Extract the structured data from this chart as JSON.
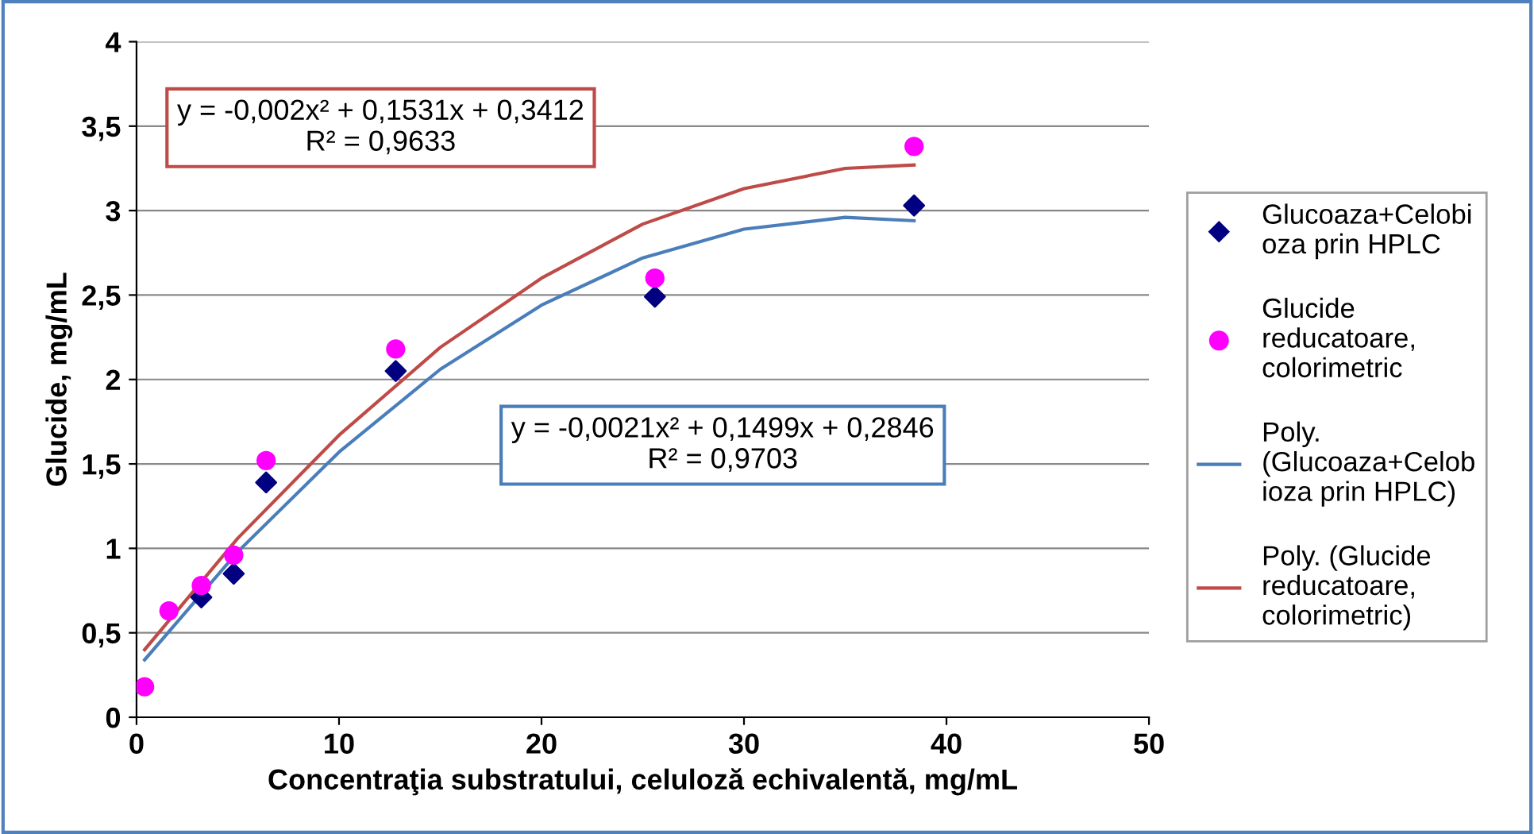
{
  "chart_data": {
    "type": "scatter",
    "xlabel": "Concentraţia substratului, celuloză echivalentă, mg/mL",
    "ylabel": "Glucide, mg/mL",
    "xlim": [
      0,
      50
    ],
    "ylim": [
      0,
      4
    ],
    "xticks": [
      0,
      10,
      20,
      30,
      40,
      50
    ],
    "yticks": [
      0,
      {
        "value": 0.5,
        "label": "0,5"
      },
      1,
      {
        "value": 1.5,
        "label": "1,5"
      },
      2,
      {
        "value": 2.5,
        "label": "2,5"
      },
      3,
      {
        "value": 3.5,
        "label": "3,5"
      },
      4
    ],
    "grid": "y",
    "legend": "right",
    "series": [
      {
        "name": "Glucoaza+Celobioza prin HPLC",
        "marker": "diamond",
        "color": "#000080",
        "x": [
          3.2,
          4.8,
          6.4,
          12.8,
          25.6,
          38.4
        ],
        "values": [
          0.71,
          0.85,
          1.39,
          2.05,
          2.49,
          3.03
        ]
      },
      {
        "name": "Glucide reducatoare, colorimetric",
        "marker": "circle",
        "color": "#ff00ff",
        "x": [
          0.4,
          1.6,
          3.2,
          4.8,
          6.4,
          12.8,
          25.6,
          38.4
        ],
        "values": [
          0.18,
          0.63,
          0.78,
          0.96,
          1.52,
          2.18,
          2.6,
          3.38
        ]
      },
      {
        "name": "Poly. (Glucoaza+Celobioza prin HPLC)",
        "type": "line",
        "marker": "none",
        "color": "#4a7ebb",
        "x": [
          0.4,
          5,
          10,
          15,
          20,
          25,
          30,
          35,
          38.4
        ],
        "values": [
          0.34,
          0.98,
          1.57,
          2.06,
          2.44,
          2.72,
          2.89,
          2.96,
          2.94
        ]
      },
      {
        "name": "Poly. (Glucide reducatoare, colorimetric)",
        "type": "line",
        "marker": "none",
        "color": "#be4b48",
        "x": [
          0.4,
          5,
          10,
          15,
          20,
          25,
          30,
          35,
          38.4
        ],
        "values": [
          0.4,
          1.06,
          1.67,
          2.19,
          2.6,
          2.92,
          3.13,
          3.25,
          3.27
        ]
      }
    ],
    "annotations": [
      "y = -0,002x² + 0,1531x + 0,3412\nR² = 0,9633",
      "y = -0,0021x² + 0,1499x + 0,2846\nR² = 0,9703"
    ]
  }
}
